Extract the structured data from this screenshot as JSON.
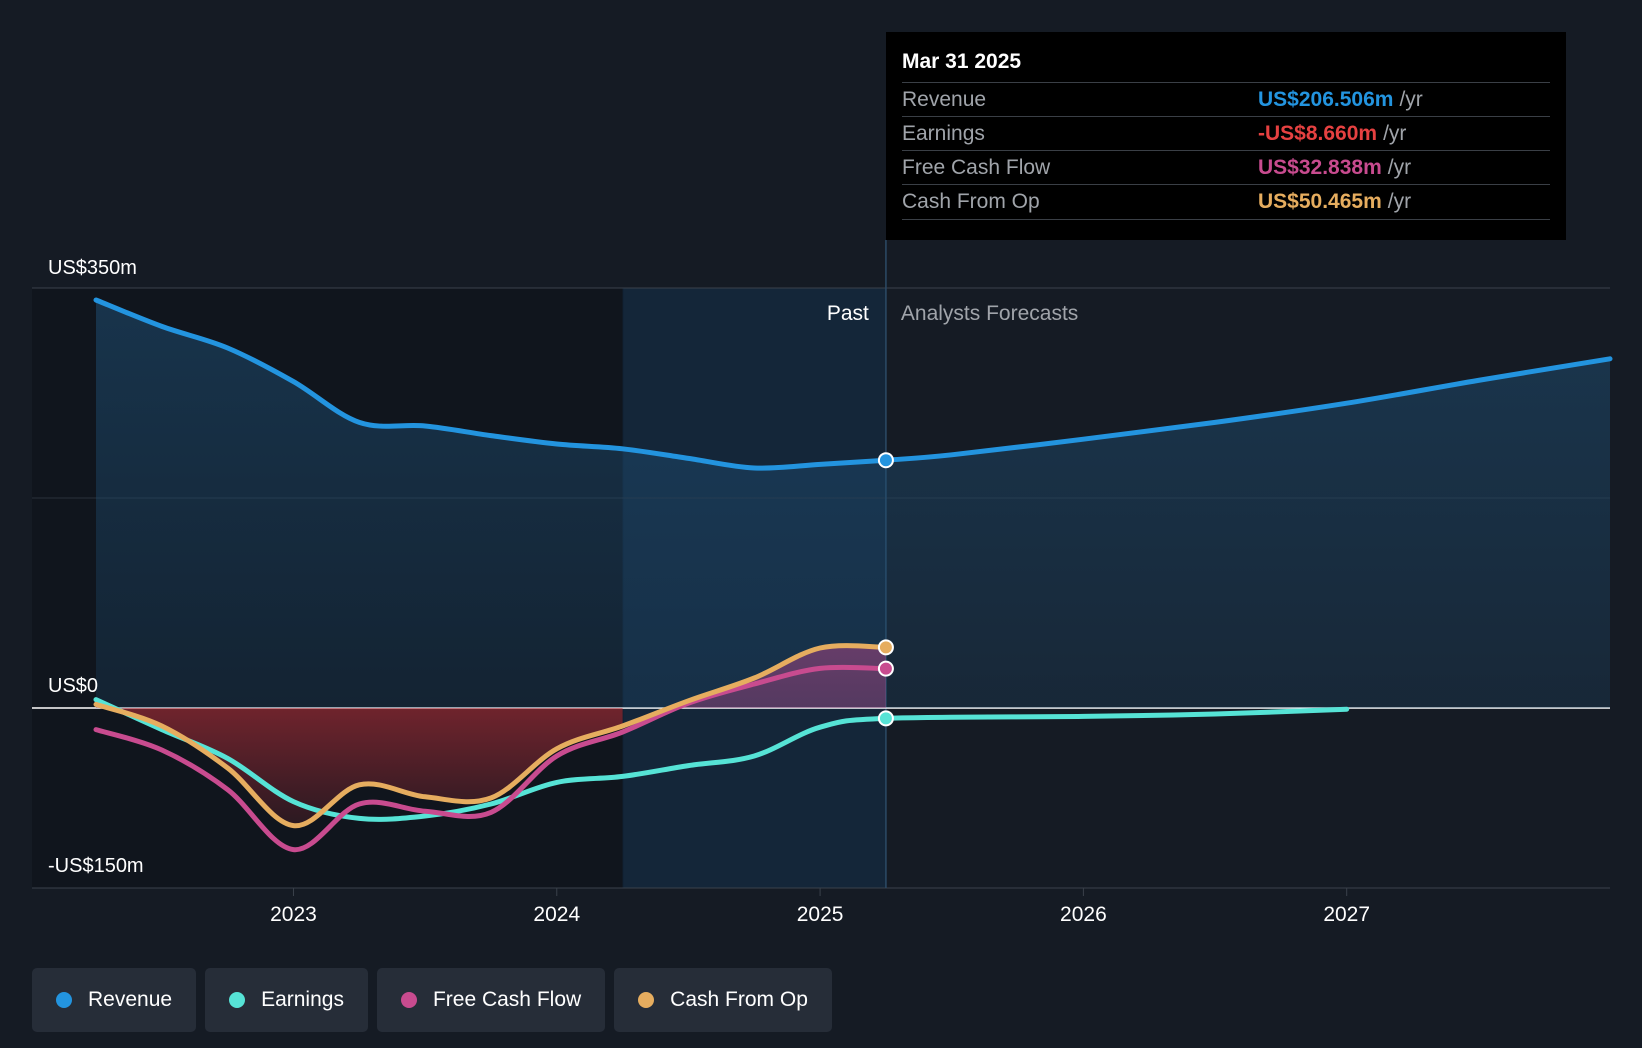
{
  "tooltip": {
    "date": "Mar 31 2025",
    "rows": [
      {
        "label": "Revenue",
        "value": "US$206.506m",
        "unit": "/yr",
        "color": "#2394df"
      },
      {
        "label": "Earnings",
        "value": "-US$8.660m",
        "unit": "/yr",
        "color": "#e64141"
      },
      {
        "label": "Free Cash Flow",
        "value": "US$32.838m",
        "unit": "/yr",
        "color": "#c84b8f"
      },
      {
        "label": "Cash From Op",
        "value": "US$50.465m",
        "unit": "/yr",
        "color": "#e6ad5f"
      }
    ]
  },
  "legend": [
    {
      "label": "Revenue",
      "color": "#2394df"
    },
    {
      "label": "Earnings",
      "color": "#56e3d6"
    },
    {
      "label": "Free Cash Flow",
      "color": "#c84b8f"
    },
    {
      "label": "Cash From Op",
      "color": "#e6ad5f"
    }
  ],
  "chart_data": {
    "type": "line",
    "y_tick_labels": [
      "US$350m",
      "US$0",
      "-US$150m"
    ],
    "ylim": [
      -150,
      350
    ],
    "xlim": [
      2022.25,
      2028.0
    ],
    "x_tick_labels": [
      "2023",
      "2024",
      "2025",
      "2026",
      "2027"
    ],
    "x_ticks": [
      2023,
      2024,
      2025,
      2026,
      2027
    ],
    "past_label": "Past",
    "forecast_label": "Analysts Forecasts",
    "past_end": 2025.25,
    "highlight_start": 2024.25,
    "series": [
      {
        "name": "Revenue",
        "color": "#2394df",
        "points": [
          [
            2022.25,
            340
          ],
          [
            2022.5,
            318
          ],
          [
            2022.75,
            300
          ],
          [
            2023.0,
            272
          ],
          [
            2023.25,
            238
          ],
          [
            2023.5,
            235
          ],
          [
            2023.75,
            227
          ],
          [
            2024.0,
            220
          ],
          [
            2024.25,
            216
          ],
          [
            2024.5,
            208
          ],
          [
            2024.75,
            200
          ],
          [
            2025.0,
            203
          ],
          [
            2025.25,
            206.5
          ],
          [
            2025.5,
            211
          ],
          [
            2026.0,
            224
          ],
          [
            2026.5,
            238
          ],
          [
            2027.0,
            254
          ],
          [
            2027.5,
            273
          ],
          [
            2028.0,
            291
          ]
        ]
      },
      {
        "name": "Earnings",
        "color": "#56e3d6",
        "points": [
          [
            2022.25,
            7
          ],
          [
            2022.5,
            -18
          ],
          [
            2022.75,
            -42
          ],
          [
            2023.0,
            -78
          ],
          [
            2023.25,
            -92
          ],
          [
            2023.5,
            -90
          ],
          [
            2023.75,
            -80
          ],
          [
            2024.0,
            -62
          ],
          [
            2024.25,
            -57
          ],
          [
            2024.5,
            -48
          ],
          [
            2024.75,
            -40
          ],
          [
            2025.0,
            -16
          ],
          [
            2025.25,
            -8.66
          ],
          [
            2026.0,
            -7
          ],
          [
            2026.5,
            -5
          ],
          [
            2027.0,
            -1
          ]
        ]
      },
      {
        "name": "Free Cash Flow",
        "color": "#c84b8f",
        "points": [
          [
            2022.25,
            -18
          ],
          [
            2022.5,
            -35
          ],
          [
            2022.75,
            -68
          ],
          [
            2023.0,
            -118
          ],
          [
            2023.25,
            -80
          ],
          [
            2023.5,
            -86
          ],
          [
            2023.75,
            -87
          ],
          [
            2024.0,
            -40
          ],
          [
            2024.25,
            -20
          ],
          [
            2024.5,
            4
          ],
          [
            2024.75,
            20
          ],
          [
            2025.0,
            33
          ],
          [
            2025.25,
            32.8
          ]
        ]
      },
      {
        "name": "Cash From Op",
        "color": "#e6ad5f",
        "points": [
          [
            2022.25,
            3
          ],
          [
            2022.5,
            -15
          ],
          [
            2022.75,
            -50
          ],
          [
            2023.0,
            -98
          ],
          [
            2023.25,
            -64
          ],
          [
            2023.5,
            -74
          ],
          [
            2023.75,
            -75
          ],
          [
            2024.0,
            -34
          ],
          [
            2024.25,
            -15
          ],
          [
            2024.5,
            6
          ],
          [
            2024.75,
            25
          ],
          [
            2025.0,
            50
          ],
          [
            2025.25,
            50.5
          ]
        ]
      }
    ]
  }
}
